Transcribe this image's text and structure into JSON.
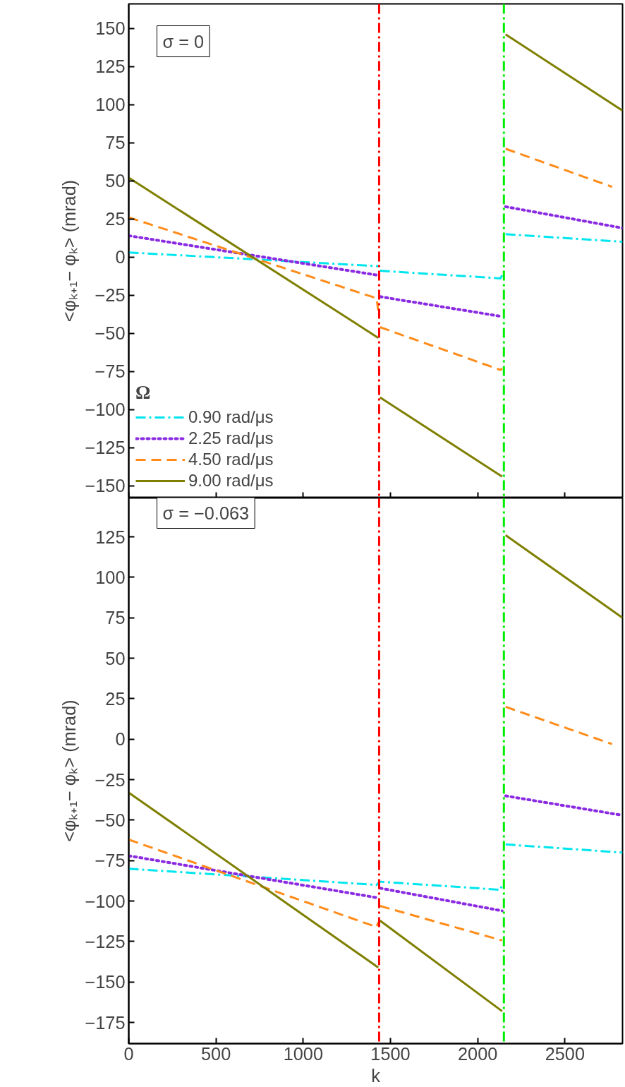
{
  "chart_data": [
    {
      "type": "line",
      "ylabel": "<φₖ₊₁− φₖ> (mrad)",
      "legend_title": "Ω",
      "legend": "bottom left",
      "grid": false,
      "tick_labels": "y",
      "xlim": [
        0,
        2830
      ],
      "xticks": [
        0,
        500,
        1000,
        1500,
        2000,
        2500
      ],
      "ylim": [
        -158,
        166
      ],
      "yticks": [
        -150,
        -125,
        -100,
        -75,
        -50,
        -25,
        0,
        25,
        50,
        75,
        100,
        125,
        150
      ],
      "annotations": [
        "σ = 0"
      ],
      "ref_lines": [
        {
          "axis": "x",
          "value": 1435,
          "label": null,
          "color": "#ff0000",
          "line_style": "dashdot"
        },
        {
          "axis": "x",
          "value": 2150,
          "label": null,
          "color": "#00ee00",
          "line_style": "dashdot"
        }
      ],
      "series": [
        {
          "name": "0.90 rad/μs",
          "color": "#00e5ee",
          "line_style": "dashdot",
          "x": [
            0,
            1430,
            1431,
            1440,
            2130,
            2140,
            2141,
            2160,
            2830
          ],
          "values": [
            3,
            -6,
            null,
            -9,
            -14,
            -12,
            null,
            15,
            10
          ]
        },
        {
          "name": "2.25 rad/μs",
          "color": "#8a2be2",
          "line_style": "dotted",
          "x": [
            0,
            1430,
            1431,
            1440,
            2140,
            2141,
            2160,
            2830
          ],
          "values": [
            14,
            -12,
            null,
            -26,
            -39,
            null,
            33,
            19
          ]
        },
        {
          "name": "4.50 rad/μs",
          "color": "#ff8c1a",
          "line_style": "dashed",
          "x": [
            0,
            1420,
            1430,
            1431,
            1440,
            2130,
            2140,
            2141,
            2160,
            2770
          ],
          "values": [
            26,
            -27,
            -35,
            null,
            -46,
            -74,
            -73,
            null,
            71,
            46
          ]
        },
        {
          "name": "9.00 rad/μs",
          "color": "#7f7f00",
          "line_style": "solid",
          "x": [
            0,
            1430,
            1431,
            1440,
            2140,
            2141,
            2160,
            2830
          ],
          "values": [
            52,
            -53,
            null,
            -92,
            -144,
            null,
            146,
            96
          ]
        }
      ]
    },
    {
      "type": "line",
      "xlabel": "k",
      "ylabel": "<φₖ₊₁− φₖ> (mrad)",
      "legend": false,
      "grid": false,
      "xlim": [
        0,
        2830
      ],
      "xticks": [
        0,
        500,
        1000,
        1500,
        2000,
        2500
      ],
      "ylim": [
        -188,
        149
      ],
      "yticks": [
        -175,
        -150,
        -125,
        -100,
        -75,
        -50,
        -25,
        0,
        25,
        50,
        75,
        100,
        125
      ],
      "annotations": [
        "σ = −0.063"
      ],
      "ref_lines": [
        {
          "axis": "x",
          "value": 1435,
          "label": null,
          "color": "#ff0000",
          "line_style": "dashdot"
        },
        {
          "axis": "x",
          "value": 2150,
          "label": null,
          "color": "#00ee00",
          "line_style": "dashdot"
        }
      ],
      "series": [
        {
          "color": "#00e5ee",
          "line_style": "dashdot",
          "x": [
            0,
            1420,
            1440,
            2130,
            2140,
            2141,
            2160,
            2830
          ],
          "values": [
            -80,
            -90,
            -88,
            -93,
            -90,
            null,
            -65,
            -70
          ]
        },
        {
          "color": "#8a2be2",
          "line_style": "dotted",
          "x": [
            0,
            1430,
            1431,
            1440,
            2140,
            2141,
            2160,
            2830
          ],
          "values": [
            -72,
            -98,
            null,
            -92,
            -106,
            null,
            -35,
            -47
          ]
        },
        {
          "color": "#ff8c1a",
          "line_style": "dashed",
          "x": [
            0,
            1420,
            1430,
            1431,
            1440,
            2130,
            2140,
            2141,
            2160,
            2770
          ],
          "values": [
            -62,
            -116,
            -113,
            null,
            -103,
            -124,
            -124,
            null,
            20,
            -3
          ]
        },
        {
          "color": "#7f7f00",
          "line_style": "solid",
          "x": [
            0,
            1430,
            1431,
            1440,
            2140,
            2141,
            2160,
            2830
          ],
          "values": [
            -33,
            -141,
            null,
            -112,
            -168,
            null,
            126,
            75
          ]
        }
      ]
    }
  ]
}
